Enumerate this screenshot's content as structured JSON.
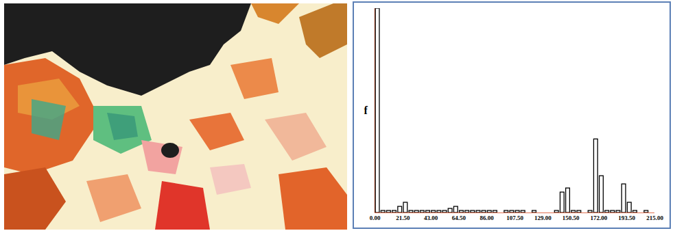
{
  "chart_data": {
    "type": "histogram",
    "ylabel": "f",
    "bins": [
      0,
      4.3,
      8.6,
      12.9,
      17.2,
      21.5,
      25.8,
      30.1,
      34.4,
      38.7,
      43,
      47.3,
      51.6,
      55.9,
      60.2,
      64.5,
      68.8,
      73.1,
      77.4,
      81.7,
      86,
      90.3,
      94.6,
      98.9,
      103.2,
      107.5,
      111.8,
      116.1,
      120.4,
      124.7,
      129,
      133.3,
      137.6,
      141.9,
      146.2,
      150.5,
      154.8,
      159.1,
      163.4,
      167.7,
      172,
      176.3,
      180.6,
      184.9,
      189.2,
      193.5,
      197.8,
      202.1,
      206.4,
      210.7,
      215
    ],
    "values": [
      100,
      1,
      1,
      1,
      3,
      5,
      1,
      1,
      1,
      1,
      1,
      1,
      1,
      2,
      3,
      1,
      1,
      1,
      1,
      1,
      1,
      1,
      0,
      1,
      1,
      1,
      1,
      0,
      1,
      0,
      0,
      0,
      1,
      10,
      12,
      1,
      1,
      0,
      1,
      36,
      18,
      1,
      1,
      1,
      14,
      5,
      1,
      0,
      1,
      0
    ],
    "color": "#ffffff",
    "xlim": [
      0,
      215
    ],
    "xticks": [
      {
        "value": 0,
        "label": "0.00"
      },
      {
        "value": 21.5,
        "label": "21.50"
      },
      {
        "value": 43,
        "label": "43.00"
      },
      {
        "value": 64.5,
        "label": "64.50"
      },
      {
        "value": 86,
        "label": "86.00"
      },
      {
        "value": 107.5,
        "label": "107.50"
      },
      {
        "value": 129,
        "label": "129.00"
      },
      {
        "value": 150.5,
        "label": "150.50"
      },
      {
        "value": 172,
        "label": "172.00"
      },
      {
        "value": 193.5,
        "label": "193.50"
      },
      {
        "value": 215,
        "label": "215.00"
      }
    ],
    "ylim": [
      0,
      100
    ],
    "tick_labels": "x"
  }
}
